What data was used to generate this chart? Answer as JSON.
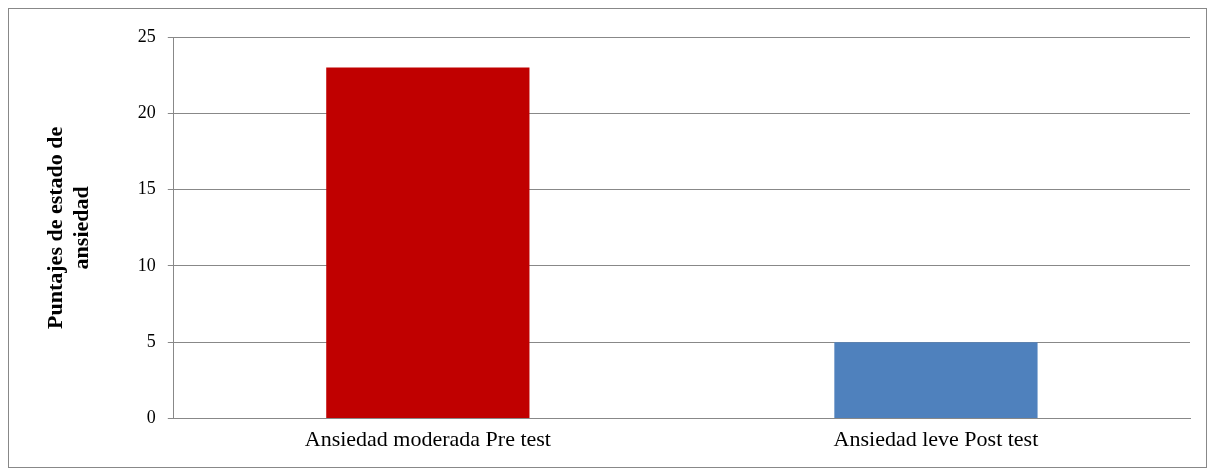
{
  "chart_data": {
    "type": "bar",
    "ylabel": "Puntajes de estado de ansiedad",
    "categories": [
      "Ansiedad moderada Pre test",
      "Ansiedad leve Post test"
    ],
    "values": [
      23,
      5
    ],
    "colors": [
      "#c00000",
      "#4f81bd"
    ],
    "ylim": [
      0,
      25
    ],
    "yticks": [
      0,
      5,
      10,
      15,
      20,
      25
    ],
    "grid": "y",
    "legend": false
  }
}
